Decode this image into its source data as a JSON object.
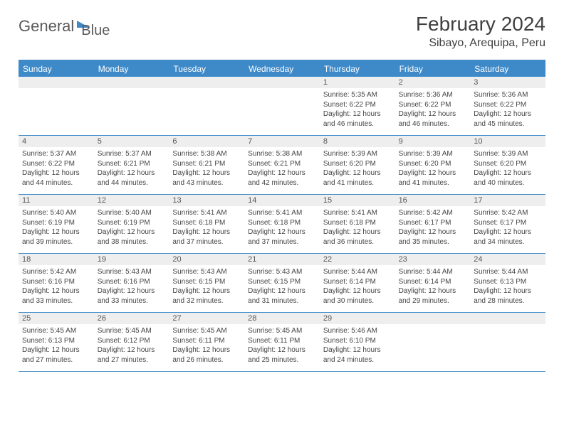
{
  "brand": {
    "word1": "General",
    "word2": "Blue"
  },
  "title": "February 2024",
  "location": "Sibayo, Arequipa, Peru",
  "colors": {
    "accent": "#3e8ac9",
    "header_bg": "#3e8ac9",
    "header_text": "#ffffff",
    "daynum_bg": "#eeeeee",
    "text": "#444444",
    "background": "#ffffff"
  },
  "calendar": {
    "days_of_week": [
      "Sunday",
      "Monday",
      "Tuesday",
      "Wednesday",
      "Thursday",
      "Friday",
      "Saturday"
    ],
    "grid_columns": 7,
    "cell_font_size_pt": 7.5,
    "header_font_size_pt": 9,
    "weeks": [
      [
        null,
        null,
        null,
        null,
        {
          "n": "1",
          "sunrise": "5:35 AM",
          "sunset": "6:22 PM",
          "daylight": "12 hours and 46 minutes."
        },
        {
          "n": "2",
          "sunrise": "5:36 AM",
          "sunset": "6:22 PM",
          "daylight": "12 hours and 46 minutes."
        },
        {
          "n": "3",
          "sunrise": "5:36 AM",
          "sunset": "6:22 PM",
          "daylight": "12 hours and 45 minutes."
        }
      ],
      [
        {
          "n": "4",
          "sunrise": "5:37 AM",
          "sunset": "6:22 PM",
          "daylight": "12 hours and 44 minutes."
        },
        {
          "n": "5",
          "sunrise": "5:37 AM",
          "sunset": "6:21 PM",
          "daylight": "12 hours and 44 minutes."
        },
        {
          "n": "6",
          "sunrise": "5:38 AM",
          "sunset": "6:21 PM",
          "daylight": "12 hours and 43 minutes."
        },
        {
          "n": "7",
          "sunrise": "5:38 AM",
          "sunset": "6:21 PM",
          "daylight": "12 hours and 42 minutes."
        },
        {
          "n": "8",
          "sunrise": "5:39 AM",
          "sunset": "6:20 PM",
          "daylight": "12 hours and 41 minutes."
        },
        {
          "n": "9",
          "sunrise": "5:39 AM",
          "sunset": "6:20 PM",
          "daylight": "12 hours and 41 minutes."
        },
        {
          "n": "10",
          "sunrise": "5:39 AM",
          "sunset": "6:20 PM",
          "daylight": "12 hours and 40 minutes."
        }
      ],
      [
        {
          "n": "11",
          "sunrise": "5:40 AM",
          "sunset": "6:19 PM",
          "daylight": "12 hours and 39 minutes."
        },
        {
          "n": "12",
          "sunrise": "5:40 AM",
          "sunset": "6:19 PM",
          "daylight": "12 hours and 38 minutes."
        },
        {
          "n": "13",
          "sunrise": "5:41 AM",
          "sunset": "6:18 PM",
          "daylight": "12 hours and 37 minutes."
        },
        {
          "n": "14",
          "sunrise": "5:41 AM",
          "sunset": "6:18 PM",
          "daylight": "12 hours and 37 minutes."
        },
        {
          "n": "15",
          "sunrise": "5:41 AM",
          "sunset": "6:18 PM",
          "daylight": "12 hours and 36 minutes."
        },
        {
          "n": "16",
          "sunrise": "5:42 AM",
          "sunset": "6:17 PM",
          "daylight": "12 hours and 35 minutes."
        },
        {
          "n": "17",
          "sunrise": "5:42 AM",
          "sunset": "6:17 PM",
          "daylight": "12 hours and 34 minutes."
        }
      ],
      [
        {
          "n": "18",
          "sunrise": "5:42 AM",
          "sunset": "6:16 PM",
          "daylight": "12 hours and 33 minutes."
        },
        {
          "n": "19",
          "sunrise": "5:43 AM",
          "sunset": "6:16 PM",
          "daylight": "12 hours and 33 minutes."
        },
        {
          "n": "20",
          "sunrise": "5:43 AM",
          "sunset": "6:15 PM",
          "daylight": "12 hours and 32 minutes."
        },
        {
          "n": "21",
          "sunrise": "5:43 AM",
          "sunset": "6:15 PM",
          "daylight": "12 hours and 31 minutes."
        },
        {
          "n": "22",
          "sunrise": "5:44 AM",
          "sunset": "6:14 PM",
          "daylight": "12 hours and 30 minutes."
        },
        {
          "n": "23",
          "sunrise": "5:44 AM",
          "sunset": "6:14 PM",
          "daylight": "12 hours and 29 minutes."
        },
        {
          "n": "24",
          "sunrise": "5:44 AM",
          "sunset": "6:13 PM",
          "daylight": "12 hours and 28 minutes."
        }
      ],
      [
        {
          "n": "25",
          "sunrise": "5:45 AM",
          "sunset": "6:13 PM",
          "daylight": "12 hours and 27 minutes."
        },
        {
          "n": "26",
          "sunrise": "5:45 AM",
          "sunset": "6:12 PM",
          "daylight": "12 hours and 27 minutes."
        },
        {
          "n": "27",
          "sunrise": "5:45 AM",
          "sunset": "6:11 PM",
          "daylight": "12 hours and 26 minutes."
        },
        {
          "n": "28",
          "sunrise": "5:45 AM",
          "sunset": "6:11 PM",
          "daylight": "12 hours and 25 minutes."
        },
        {
          "n": "29",
          "sunrise": "5:46 AM",
          "sunset": "6:10 PM",
          "daylight": "12 hours and 24 minutes."
        },
        null,
        null
      ]
    ]
  },
  "labels": {
    "sunrise_prefix": "Sunrise: ",
    "sunset_prefix": "Sunset: ",
    "daylight_prefix": "Daylight: "
  }
}
